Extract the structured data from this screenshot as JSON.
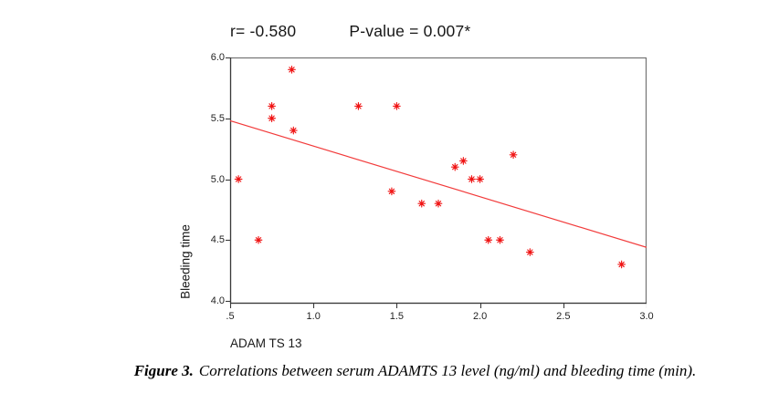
{
  "title": {
    "r_text": "r= -0.580",
    "p_text": "P-value = 0.007*"
  },
  "caption": {
    "label": "Figure 3.",
    "text": "Correlations between serum ADAMTS 13 level (ng/ml) and bleeding time (min)."
  },
  "colors": {
    "marker": "#f01414",
    "trend_line": "#f23b3b",
    "frame": "#6e6e6e",
    "axis": "#3a3a3a",
    "text": "#161616"
  },
  "chart_data": {
    "type": "scatter",
    "title": "r= -0.580   P-value = 0.007*",
    "xlabel": "ADAM TS 13",
    "ylabel": "Bleeding time",
    "xlim": [
      0.5,
      3.0
    ],
    "ylim": [
      4.0,
      6.0
    ],
    "grid": false,
    "marker": "asterisk",
    "x_ticks": [
      {
        "value": 0.5,
        "label": ".5"
      },
      {
        "value": 1.0,
        "label": "1.0"
      },
      {
        "value": 1.5,
        "label": "1.5"
      },
      {
        "value": 2.0,
        "label": "2.0"
      },
      {
        "value": 2.5,
        "label": "2.5"
      },
      {
        "value": 3.0,
        "label": "3.0"
      }
    ],
    "y_ticks": [
      {
        "value": 6.0,
        "label": "6.0"
      },
      {
        "value": 5.5,
        "label": "5.5"
      },
      {
        "value": 5.0,
        "label": "5.0"
      },
      {
        "value": 4.5,
        "label": "4.5"
      },
      {
        "value": 4.0,
        "label": "4.0"
      }
    ],
    "points": [
      {
        "x": 0.55,
        "y": 5.0
      },
      {
        "x": 0.67,
        "y": 4.5
      },
      {
        "x": 0.75,
        "y": 5.6
      },
      {
        "x": 0.75,
        "y": 5.5
      },
      {
        "x": 0.87,
        "y": 5.9
      },
      {
        "x": 0.88,
        "y": 5.4
      },
      {
        "x": 1.27,
        "y": 5.6
      },
      {
        "x": 1.5,
        "y": 5.6
      },
      {
        "x": 1.47,
        "y": 4.9
      },
      {
        "x": 1.65,
        "y": 4.8
      },
      {
        "x": 1.75,
        "y": 4.8
      },
      {
        "x": 1.85,
        "y": 5.1
      },
      {
        "x": 1.9,
        "y": 5.15
      },
      {
        "x": 1.95,
        "y": 5.0
      },
      {
        "x": 2.0,
        "y": 5.0
      },
      {
        "x": 2.05,
        "y": 4.5
      },
      {
        "x": 2.12,
        "y": 4.5
      },
      {
        "x": 2.2,
        "y": 5.2
      },
      {
        "x": 2.3,
        "y": 4.4
      },
      {
        "x": 2.85,
        "y": 4.3
      }
    ],
    "trend_line": {
      "x1": 0.5,
      "y1": 5.48,
      "x2": 3.0,
      "y2": 4.44
    }
  }
}
